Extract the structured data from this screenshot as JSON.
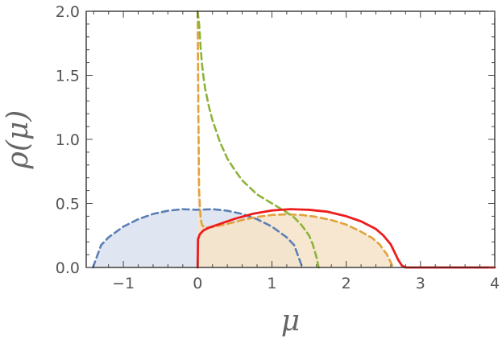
{
  "chart_data": {
    "type": "area",
    "xlabel": "μ",
    "ylabel": "ρ(μ)",
    "xlim": [
      -1.5,
      4
    ],
    "ylim": [
      0,
      2
    ],
    "x_ticks": [
      -1,
      0,
      1,
      2,
      3,
      4
    ],
    "x_tick_labels": [
      "−1",
      "0",
      "1",
      "2",
      "3",
      "4"
    ],
    "y_ticks": [
      0,
      0.5,
      1,
      1.5,
      2
    ],
    "y_tick_labels": [
      "0.0",
      "0.5",
      "1.0",
      "1.5",
      "2.0"
    ],
    "grid": false,
    "series": [
      {
        "style": "dashed",
        "fill": true,
        "color": "#5b7fb5",
        "fill_color": "#dbe2ee",
        "x": [
          -1.41,
          -1.3,
          -1.2,
          -1.0,
          -0.8,
          -0.6,
          -0.4,
          -0.2,
          0.0,
          0.2,
          0.4,
          0.6,
          0.8,
          1.0,
          1.2,
          1.3,
          1.41
        ],
        "y": [
          0.0,
          0.174,
          0.235,
          0.319,
          0.377,
          0.418,
          0.443,
          0.455,
          0.45,
          0.455,
          0.443,
          0.418,
          0.377,
          0.319,
          0.235,
          0.174,
          0.0
        ]
      },
      {
        "style": "dashed",
        "fill": true,
        "color": "#e3a23b",
        "fill_color": "#f6e3c8",
        "x": [
          0.0,
          0.01,
          0.02,
          0.04,
          0.06,
          0.1,
          0.2,
          0.4,
          0.6,
          0.8,
          1.0,
          1.2,
          1.4,
          1.6,
          1.8,
          2.0,
          2.2,
          2.35,
          2.45,
          2.55,
          2.6,
          2.63
        ],
        "y": [
          2.0,
          1.2,
          0.6,
          0.38,
          0.33,
          0.31,
          0.315,
          0.34,
          0.37,
          0.395,
          0.41,
          0.415,
          0.41,
          0.395,
          0.37,
          0.335,
          0.28,
          0.23,
          0.18,
          0.1,
          0.04,
          0.0
        ]
      },
      {
        "style": "dashed",
        "fill": false,
        "color": "#8db33a",
        "x": [
          0.0,
          0.02,
          0.04,
          0.06,
          0.08,
          0.1,
          0.15,
          0.2,
          0.3,
          0.4,
          0.5,
          0.6,
          0.8,
          1.0,
          1.2,
          1.3,
          1.4,
          1.5,
          1.55,
          1.6,
          1.63
        ],
        "y": [
          2.0,
          1.9,
          1.72,
          1.58,
          1.48,
          1.4,
          1.26,
          1.15,
          0.98,
          0.85,
          0.76,
          0.68,
          0.57,
          0.5,
          0.43,
          0.39,
          0.33,
          0.25,
          0.18,
          0.08,
          0.0
        ]
      },
      {
        "style": "solid",
        "fill": false,
        "color": "#ee1c1c",
        "x": [
          0.0,
          0.005,
          0.03,
          0.08,
          0.15,
          0.3,
          0.5,
          0.75,
          1.0,
          1.25,
          1.5,
          1.75,
          2.0,
          2.2,
          2.4,
          2.5,
          2.6,
          2.65,
          2.7,
          2.75,
          2.8,
          3.0,
          4.0
        ],
        "y": [
          0.0,
          0.22,
          0.26,
          0.29,
          0.31,
          0.34,
          0.38,
          0.42,
          0.445,
          0.455,
          0.45,
          0.435,
          0.4,
          0.36,
          0.3,
          0.25,
          0.18,
          0.12,
          0.06,
          0.015,
          0.0,
          0.0,
          0.0
        ]
      }
    ]
  }
}
